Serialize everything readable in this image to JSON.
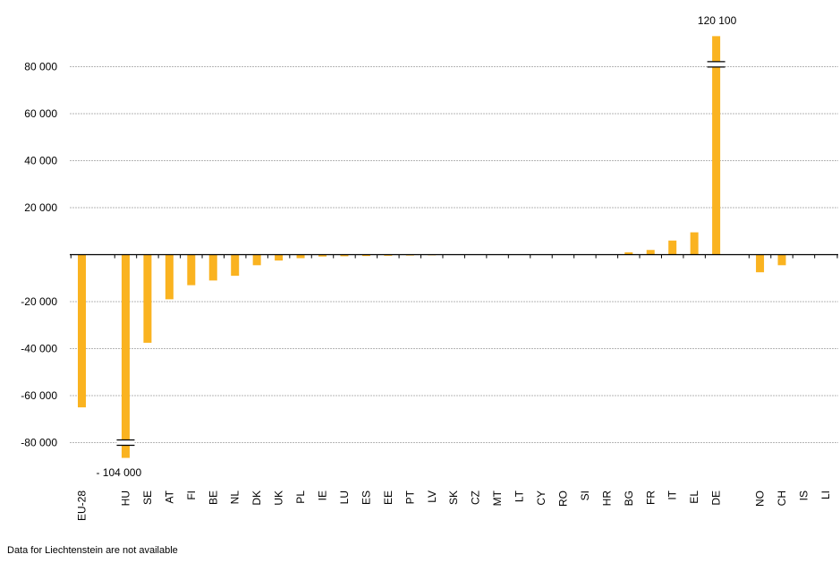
{
  "chart_data": {
    "type": "bar",
    "categories": [
      "EU-28",
      "HU",
      "SE",
      "AT",
      "FI",
      "BE",
      "NL",
      "DK",
      "UK",
      "PL",
      "IE",
      "LU",
      "ES",
      "EE",
      "PT",
      "LV",
      "SK",
      "CZ",
      "MT",
      "LT",
      "CY",
      "RO",
      "SI",
      "HR",
      "BG",
      "FR",
      "IT",
      "EL",
      "DE",
      "NO",
      "CH",
      "IS",
      "LI"
    ],
    "gap_after": [
      "EU-28",
      "DE"
    ],
    "values": [
      -65000,
      -104000,
      -37500,
      -19000,
      -13000,
      -11000,
      -9000,
      -4500,
      -2500,
      -1500,
      -800,
      -700,
      -600,
      -500,
      -400,
      -300,
      0,
      0,
      0,
      0,
      0,
      0,
      0,
      0,
      1000,
      2000,
      6000,
      9500,
      120100,
      -7500,
      -4500,
      0,
      null
    ],
    "display_values": [
      -65000,
      -86500,
      -37500,
      -19000,
      -13000,
      -11000,
      -9000,
      -4500,
      -2500,
      -1500,
      -800,
      -700,
      -600,
      -500,
      -400,
      -300,
      0,
      0,
      0,
      0,
      0,
      0,
      0,
      0,
      1000,
      2000,
      6000,
      9500,
      93000,
      -7500,
      -4500,
      0,
      null
    ],
    "ylim": [
      -90000,
      95000
    ],
    "yticks": [
      80000,
      60000,
      40000,
      20000,
      -20000,
      -40000,
      -60000,
      -80000
    ],
    "ytick_labels": [
      "80 000",
      "60 000",
      "40 000",
      "20 000",
      "-20 000",
      "-40 000",
      "-60 000",
      "-80 000"
    ],
    "axis_breaks": [
      {
        "category": "HU",
        "at": -80000,
        "label": "- 104 000"
      },
      {
        "category": "DE",
        "at": 81000,
        "label": "120 100"
      }
    ],
    "bar_color": "#fab320",
    "grid": true,
    "title": "",
    "xlabel": "",
    "ylabel": ""
  },
  "footnote": "Data for Liechtenstein are not available"
}
